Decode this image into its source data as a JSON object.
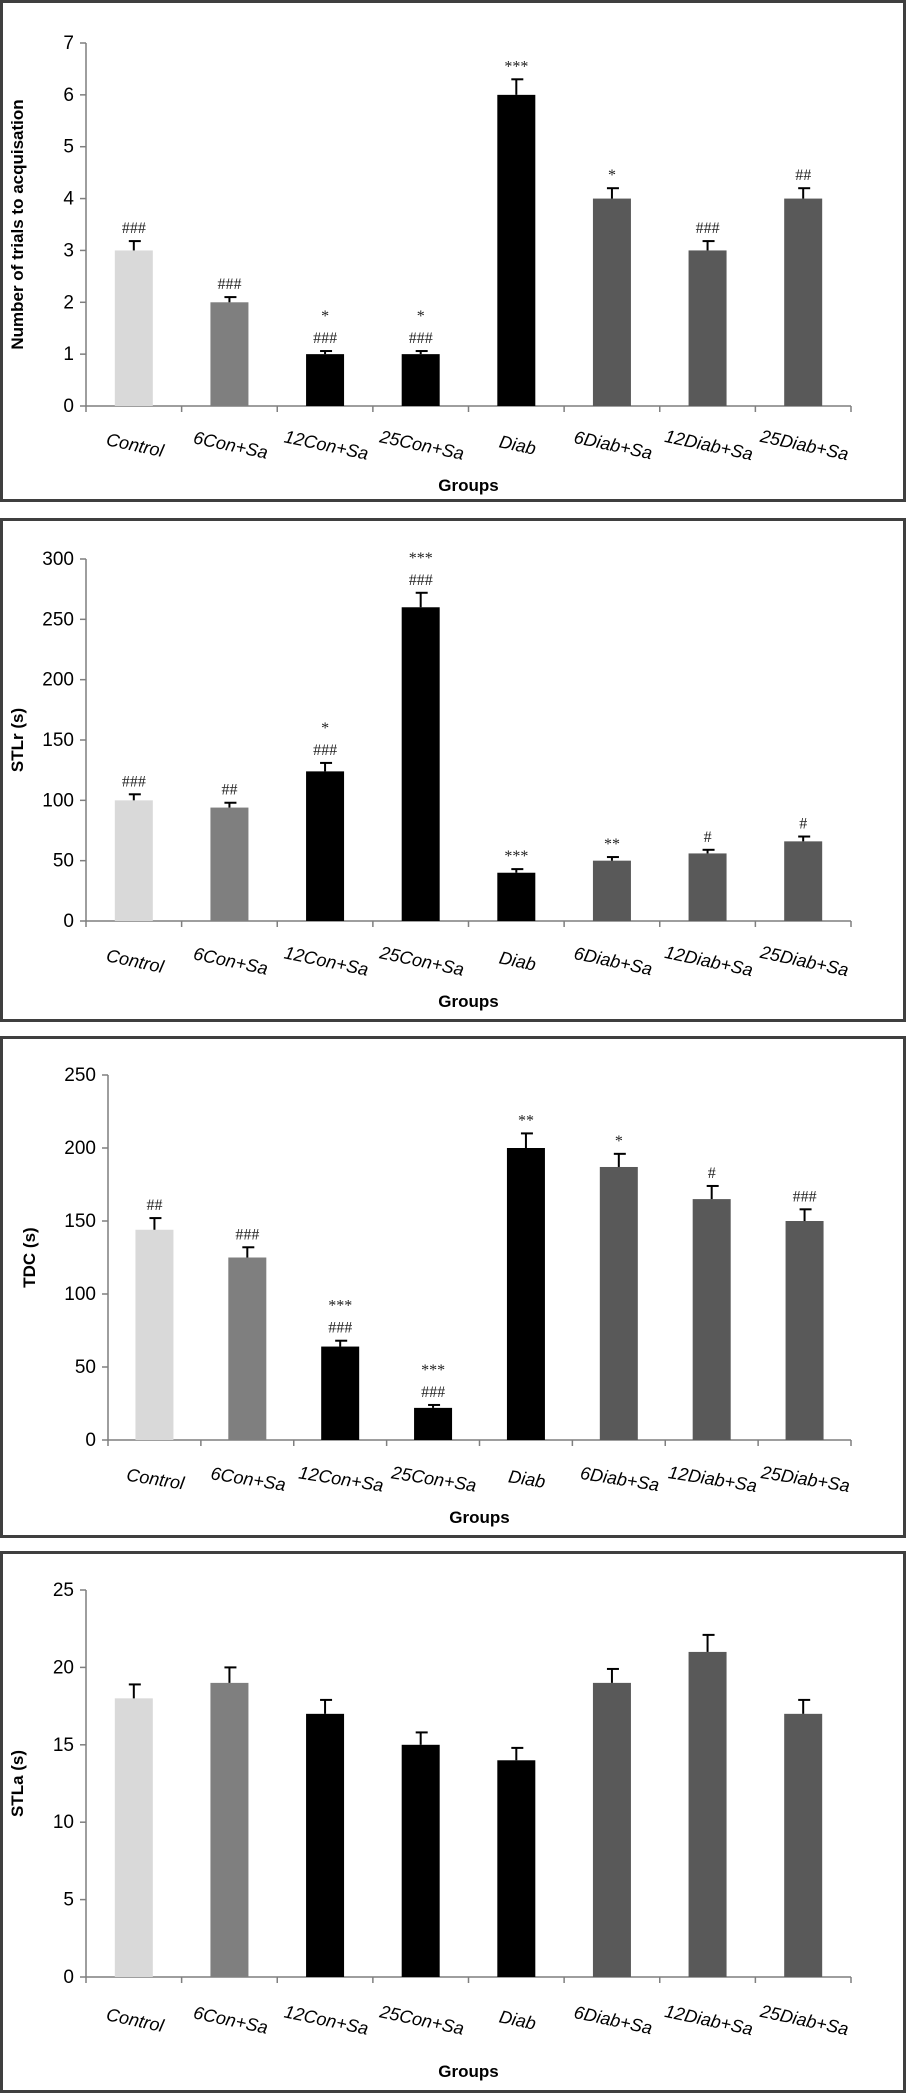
{
  "colors": {
    "control": "#d9d9d9",
    "con_sa": "#7f7f7f",
    "black": "#000000",
    "diab_sa": "#595959"
  },
  "chart_data": [
    {
      "type": "bar",
      "categories": [
        "Control",
        "6Con+Sa",
        "12Con+Sa",
        "25Con+Sa",
        "Diab",
        "6Diab+Sa",
        "12Diab+Sa",
        "25Diab+Sa"
      ],
      "values": [
        3,
        2,
        1,
        1,
        6,
        4,
        3,
        4
      ],
      "errors": [
        0.18,
        0.1,
        0.06,
        0.06,
        0.3,
        0.2,
        0.18,
        0.2
      ],
      "annotations": [
        [
          "###"
        ],
        [
          "###"
        ],
        [
          "*",
          "###"
        ],
        [
          "*",
          "###"
        ],
        [
          "***"
        ],
        [
          "*"
        ],
        [
          "###"
        ],
        [
          "##"
        ]
      ],
      "bar_colors": [
        "#d9d9d9",
        "#7f7f7f",
        "#000000",
        "#000000",
        "#000000",
        "#595959",
        "#595959",
        "#595959"
      ],
      "ylabel": "Number of trials to acquisation",
      "xlabel": "Groups",
      "ylim": [
        0,
        7
      ],
      "yticks": [
        0,
        1,
        2,
        3,
        4,
        5,
        6,
        7
      ]
    },
    {
      "type": "bar",
      "categories": [
        "Control",
        "6Con+Sa",
        "12Con+Sa",
        "25Con+Sa",
        "Diab",
        "6Diab+Sa",
        "12Diab+Sa",
        "25Diab+Sa"
      ],
      "values": [
        100,
        94,
        124,
        260,
        40,
        50,
        56,
        66
      ],
      "errors": [
        5,
        4,
        7,
        12,
        3,
        3,
        3,
        4
      ],
      "annotations": [
        [
          "###"
        ],
        [
          "##"
        ],
        [
          "*",
          "###"
        ],
        [
          "***",
          "###"
        ],
        [
          "***"
        ],
        [
          "**"
        ],
        [
          "#"
        ],
        [
          "#"
        ]
      ],
      "bar_colors": [
        "#d9d9d9",
        "#7f7f7f",
        "#000000",
        "#000000",
        "#000000",
        "#595959",
        "#595959",
        "#595959"
      ],
      "ylabel": "STLr (s)",
      "xlabel": "Groups",
      "ylim": [
        0,
        300
      ],
      "yticks": [
        0,
        50,
        100,
        150,
        200,
        250,
        300
      ]
    },
    {
      "type": "bar",
      "categories": [
        "Control",
        "6Con+Sa",
        "12Con+Sa",
        "25Con+Sa",
        "Diab",
        "6Diab+Sa",
        "12Diab+Sa",
        "25Diab+Sa"
      ],
      "values": [
        144,
        125,
        64,
        22,
        200,
        187,
        165,
        150
      ],
      "errors": [
        8,
        7,
        4,
        2,
        10,
        9,
        9,
        8
      ],
      "annotations": [
        [
          "##"
        ],
        [
          "###"
        ],
        [
          "***",
          "###"
        ],
        [
          "***",
          "###"
        ],
        [
          "**"
        ],
        [
          "*"
        ],
        [
          "#"
        ],
        [
          "###"
        ]
      ],
      "bar_colors": [
        "#d9d9d9",
        "#7f7f7f",
        "#000000",
        "#000000",
        "#000000",
        "#595959",
        "#595959",
        "#595959"
      ],
      "ylabel": "TDC (s)",
      "xlabel": "Groups",
      "ylim": [
        0,
        250
      ],
      "yticks": [
        0,
        50,
        100,
        150,
        200,
        250
      ]
    },
    {
      "type": "bar",
      "categories": [
        "Control",
        "6Con+Sa",
        "12Con+Sa",
        "25Con+Sa",
        "Diab",
        "6Diab+Sa",
        "12Diab+Sa",
        "25Diab+Sa"
      ],
      "values": [
        18,
        19,
        17,
        15,
        14,
        19,
        21,
        17
      ],
      "errors": [
        0.9,
        1.0,
        0.9,
        0.8,
        0.8,
        0.9,
        1.1,
        0.9
      ],
      "annotations": [
        [],
        [],
        [],
        [],
        [],
        [],
        [],
        []
      ],
      "bar_colors": [
        "#d9d9d9",
        "#7f7f7f",
        "#000000",
        "#000000",
        "#000000",
        "#595959",
        "#595959",
        "#595959"
      ],
      "ylabel": "STLa (s)",
      "xlabel": "Groups",
      "ylim": [
        0,
        25
      ],
      "yticks": [
        0,
        5,
        10,
        15,
        20,
        25
      ]
    }
  ]
}
